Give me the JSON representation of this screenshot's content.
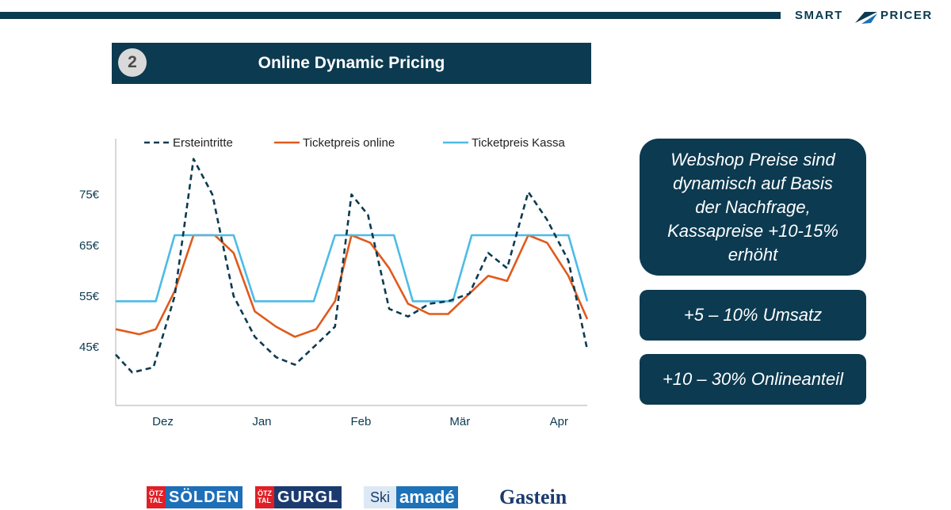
{
  "brand": {
    "part1": "SMART",
    "part2": "PRICER"
  },
  "header": {
    "step": "2",
    "title": "Online Dynamic Pricing"
  },
  "chart_data": {
    "type": "line",
    "title": "",
    "xlabel": "",
    "ylabel": "",
    "ylim": [
      33.5,
      86
    ],
    "yticks": [
      45,
      55,
      65,
      75
    ],
    "ytick_labels": [
      "45€",
      "55€",
      "65€",
      "75€"
    ],
    "xlim": [
      0,
      20
    ],
    "xticks": [
      {
        "x": 2,
        "label": "Dez"
      },
      {
        "x": 6.2,
        "label": "Jan"
      },
      {
        "x": 10.4,
        "label": "Feb"
      },
      {
        "x": 14.6,
        "label": "Mär"
      },
      {
        "x": 18.8,
        "label": "Apr"
      }
    ],
    "legend_position": "top",
    "series": [
      {
        "name": "Ersteintritte",
        "color": "#0c3a50",
        "dash": true,
        "points": [
          [
            0,
            43.5
          ],
          [
            0.7,
            40
          ],
          [
            1.6,
            41
          ],
          [
            2.5,
            55
          ],
          [
            3.3,
            82
          ],
          [
            4.1,
            75
          ],
          [
            5,
            55
          ],
          [
            5.9,
            47
          ],
          [
            6.8,
            43
          ],
          [
            7.6,
            41.5
          ],
          [
            8.4,
            45
          ],
          [
            9.3,
            49
          ],
          [
            10,
            75
          ],
          [
            10.7,
            71
          ],
          [
            11.6,
            52.5
          ],
          [
            12.4,
            51
          ],
          [
            13.3,
            53.5
          ],
          [
            14.1,
            54
          ],
          [
            15,
            55.5
          ],
          [
            15.8,
            63.5
          ],
          [
            16.6,
            60.5
          ],
          [
            17.5,
            75.5
          ],
          [
            18.3,
            70
          ],
          [
            19.2,
            62
          ],
          [
            20,
            44.5
          ]
        ]
      },
      {
        "name": "Ticketpreis online",
        "color": "#e05a1c",
        "dash": false,
        "points": [
          [
            0,
            48.5
          ],
          [
            1,
            47.5
          ],
          [
            1.7,
            48.5
          ],
          [
            2.5,
            56
          ],
          [
            3.3,
            67
          ],
          [
            4.2,
            67
          ],
          [
            5,
            63.5
          ],
          [
            5.9,
            52
          ],
          [
            6.8,
            49
          ],
          [
            7.6,
            47
          ],
          [
            8.5,
            48.5
          ],
          [
            9.3,
            54
          ],
          [
            10,
            67
          ],
          [
            10.8,
            65.5
          ],
          [
            11.6,
            60.5
          ],
          [
            12.4,
            53.5
          ],
          [
            13.3,
            51.5
          ],
          [
            14.1,
            51.5
          ],
          [
            15,
            55.5
          ],
          [
            15.8,
            59
          ],
          [
            16.6,
            58
          ],
          [
            17.5,
            67
          ],
          [
            18.3,
            65.5
          ],
          [
            19.2,
            59
          ],
          [
            20,
            50.5
          ]
        ]
      },
      {
        "name": "Ticketpreis Kassa",
        "color": "#4dbbe6",
        "dash": false,
        "points": [
          [
            0,
            54
          ],
          [
            1.7,
            54
          ],
          [
            2.5,
            67
          ],
          [
            5,
            67
          ],
          [
            5.9,
            54
          ],
          [
            8.4,
            54
          ],
          [
            9.3,
            67
          ],
          [
            11.8,
            67
          ],
          [
            12.6,
            54
          ],
          [
            14.3,
            54
          ],
          [
            15.1,
            67
          ],
          [
            19.2,
            67
          ],
          [
            20,
            54
          ]
        ]
      }
    ]
  },
  "callouts": [
    {
      "lines": [
        "Webshop Preise sind",
        "dynamisch auf Basis",
        "der Nachfrage,",
        "Kassapreise +10-15%",
        "erhöht"
      ]
    },
    {
      "text": "+5 – 10% Umsatz"
    },
    {
      "text": "+10 – 30% Onlineanteil"
    }
  ],
  "logos": {
    "soelden": {
      "tag1": "ÖTZ",
      "tag2": "TAL",
      "name": "SÖLDEN"
    },
    "gurgl": {
      "tag1": "ÖTZ",
      "tag2": "TAL",
      "name": "GURGL"
    },
    "amade": {
      "ski": "Ski",
      "name": "amadé"
    },
    "gastein": {
      "name": "Gastein"
    }
  }
}
